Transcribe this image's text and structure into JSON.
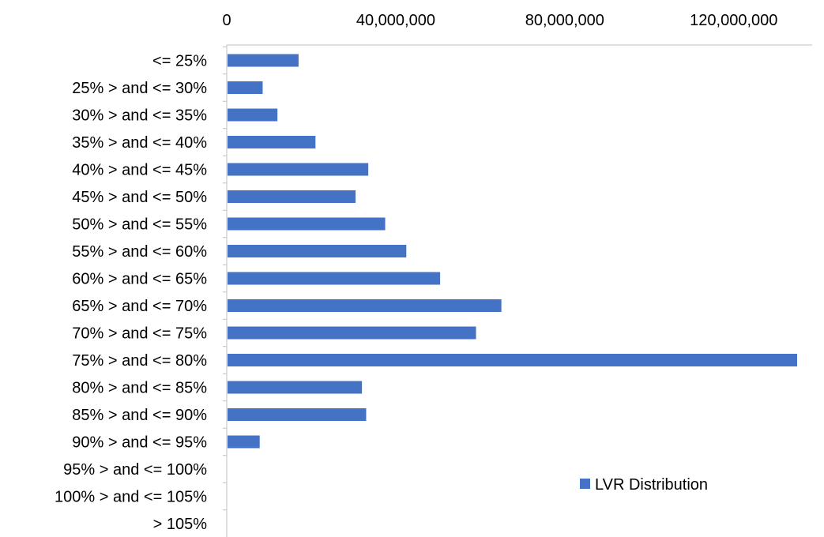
{
  "chart_data": {
    "type": "bar",
    "orientation": "horizontal",
    "categories": [
      "<= 25%",
      "25% > and <= 30%",
      "30% > and <= 35%",
      "35% > and <= 40%",
      "40% > and <= 45%",
      "45% > and <= 50%",
      "50% > and <= 55%",
      "55% > and <= 60%",
      "60% > and <= 65%",
      "65% > and <= 70%",
      "70% > and <= 75%",
      "75% > and <= 80%",
      "80% > and <= 85%",
      "85% > and <= 90%",
      "90% > and <= 95%",
      "95% > and <= 100%",
      "100% > and <= 105%",
      "> 105%"
    ],
    "series": [
      {
        "name": "LVR Distribution",
        "color": "#4472C4",
        "values": [
          17000000,
          8500000,
          12000000,
          21000000,
          33500000,
          30500000,
          37500000,
          42500000,
          50500000,
          65000000,
          59000000,
          135000000,
          32000000,
          33000000,
          7800000,
          0,
          0,
          0
        ]
      }
    ],
    "xlim": [
      0,
      135000000
    ],
    "xticks": [
      0,
      40000000,
      80000000,
      120000000
    ],
    "xtick_labels": [
      "0",
      "40,000,000",
      "80,000,000",
      "120,000,000"
    ],
    "x_axis_position": "top",
    "grid": false,
    "legend": {
      "position": "bottom-right",
      "entries": [
        "LVR Distribution"
      ]
    }
  }
}
